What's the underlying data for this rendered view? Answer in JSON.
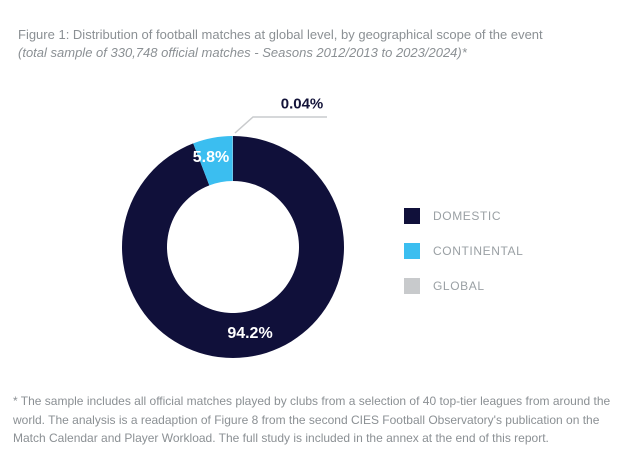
{
  "header": {
    "title_line1": "Figure 1: Distribution of football matches at global level, by geographical scope of the event",
    "title_line2": "(total sample of 330,748 official matches - Seasons 2012/2013 to 2023/2024)*"
  },
  "chart_data": {
    "type": "pie",
    "subtype": "donut",
    "title": "Distribution of football matches at global level, by geographical scope of the event",
    "categories": [
      "DOMESTIC",
      "CONTINENTAL",
      "GLOBAL"
    ],
    "values": [
      94.2,
      5.8,
      0.04
    ],
    "value_labels": [
      "94.2%",
      "5.8%",
      "0.04%"
    ],
    "unit": "percent",
    "colors": [
      "#10103a",
      "#3bbef0",
      "#c8cacc"
    ],
    "start_angle": "top",
    "direction": "clockwise",
    "legend_position": "right",
    "total_sample_text": "330,748 official matches"
  },
  "legend": {
    "items": [
      {
        "label": "DOMESTIC",
        "color": "#10103a"
      },
      {
        "label": "CONTINENTAL",
        "color": "#3bbef0"
      },
      {
        "label": "GLOBAL",
        "color": "#c8cacc"
      }
    ]
  },
  "footnote": {
    "text": "* The sample includes all official matches played by clubs from a selection of 40 top-tier leagues from around the world.  The analysis is a readaption of Figure 8 from the second CIES Football Observatory's publication on the Match Calendar and Player Workload. The full study is included in the annex at the end of this report."
  }
}
